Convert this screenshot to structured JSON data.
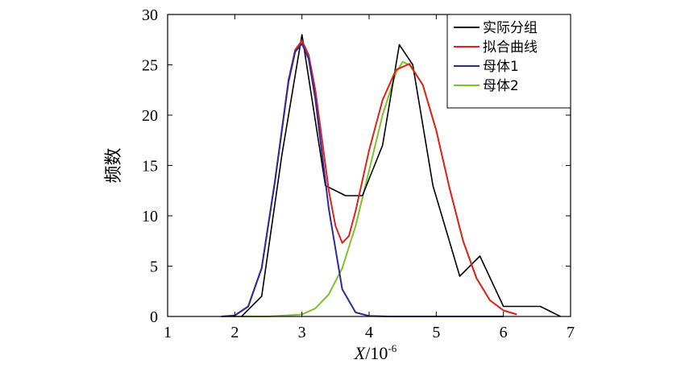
{
  "chart_data": {
    "type": "line",
    "xlabel": "X/10",
    "xlabel_sup": "-6",
    "ylabel": "频数",
    "xlim": [
      1,
      7
    ],
    "ylim": [
      0,
      30
    ],
    "xticks": [
      "1",
      "2",
      "3",
      "4",
      "5",
      "6",
      "7"
    ],
    "yticks": [
      "0",
      "5",
      "10",
      "15",
      "20",
      "25",
      "30"
    ],
    "grid": false,
    "legend_position": "top-right",
    "colors": {
      "实际分组": "#000000",
      "拟合曲线": "#e0221a",
      "母体1": "#2b2b9e",
      "母体2": "#7ec22a"
    },
    "series": [
      {
        "name": "实际分组",
        "x": [
          2.1,
          2.4,
          2.7,
          3.0,
          3.35,
          3.65,
          3.9,
          4.2,
          4.45,
          4.65,
          4.95,
          5.35,
          5.65,
          6.0,
          6.55,
          6.85
        ],
        "y": [
          0,
          2,
          16,
          28,
          13,
          12,
          12,
          17,
          27,
          25,
          13,
          4,
          6,
          1,
          1,
          0
        ]
      },
      {
        "name": "拟合曲线",
        "x": [
          2.0,
          2.2,
          2.4,
          2.6,
          2.8,
          2.9,
          3.0,
          3.1,
          3.2,
          3.3,
          3.4,
          3.5,
          3.6,
          3.7,
          3.8,
          4.0,
          4.2,
          4.4,
          4.6,
          4.8,
          5.0,
          5.2,
          5.4,
          5.6,
          5.8,
          6.0,
          6.2
        ],
        "y": [
          0.1,
          1.0,
          4.8,
          13.5,
          23.5,
          26.5,
          27.4,
          26.0,
          22.5,
          17.5,
          12.5,
          9.0,
          7.3,
          8.0,
          10.5,
          16.5,
          21.5,
          24.5,
          25.1,
          23.0,
          18.5,
          12.7,
          7.5,
          3.8,
          1.6,
          0.6,
          0.2
        ]
      },
      {
        "name": "母体1",
        "x": [
          1.8,
          2.0,
          2.2,
          2.4,
          2.6,
          2.8,
          2.9,
          3.0,
          3.1,
          3.2,
          3.4,
          3.6,
          3.8,
          4.0,
          4.3,
          4.6,
          5.0,
          5.5,
          6.0
        ],
        "y": [
          0,
          0.1,
          1.0,
          4.8,
          13.5,
          23.3,
          26.3,
          27.1,
          25.6,
          21.6,
          10.7,
          2.7,
          0.4,
          0.05,
          0,
          0,
          0,
          0,
          0
        ]
      },
      {
        "name": "母体2",
        "x": [
          1.8,
          2.5,
          3.0,
          3.2,
          3.4,
          3.6,
          3.8,
          4.0,
          4.2,
          4.4,
          4.5,
          4.6,
          4.8,
          5.0,
          5.2,
          5.4,
          5.6,
          5.8,
          6.0,
          6.2
        ],
        "y": [
          0,
          0,
          0.2,
          0.8,
          2.2,
          4.8,
          9.0,
          14.5,
          20.0,
          24.2,
          25.3,
          25.0,
          23.0,
          18.5,
          12.7,
          7.5,
          3.8,
          1.6,
          0.6,
          0.2
        ]
      }
    ]
  }
}
